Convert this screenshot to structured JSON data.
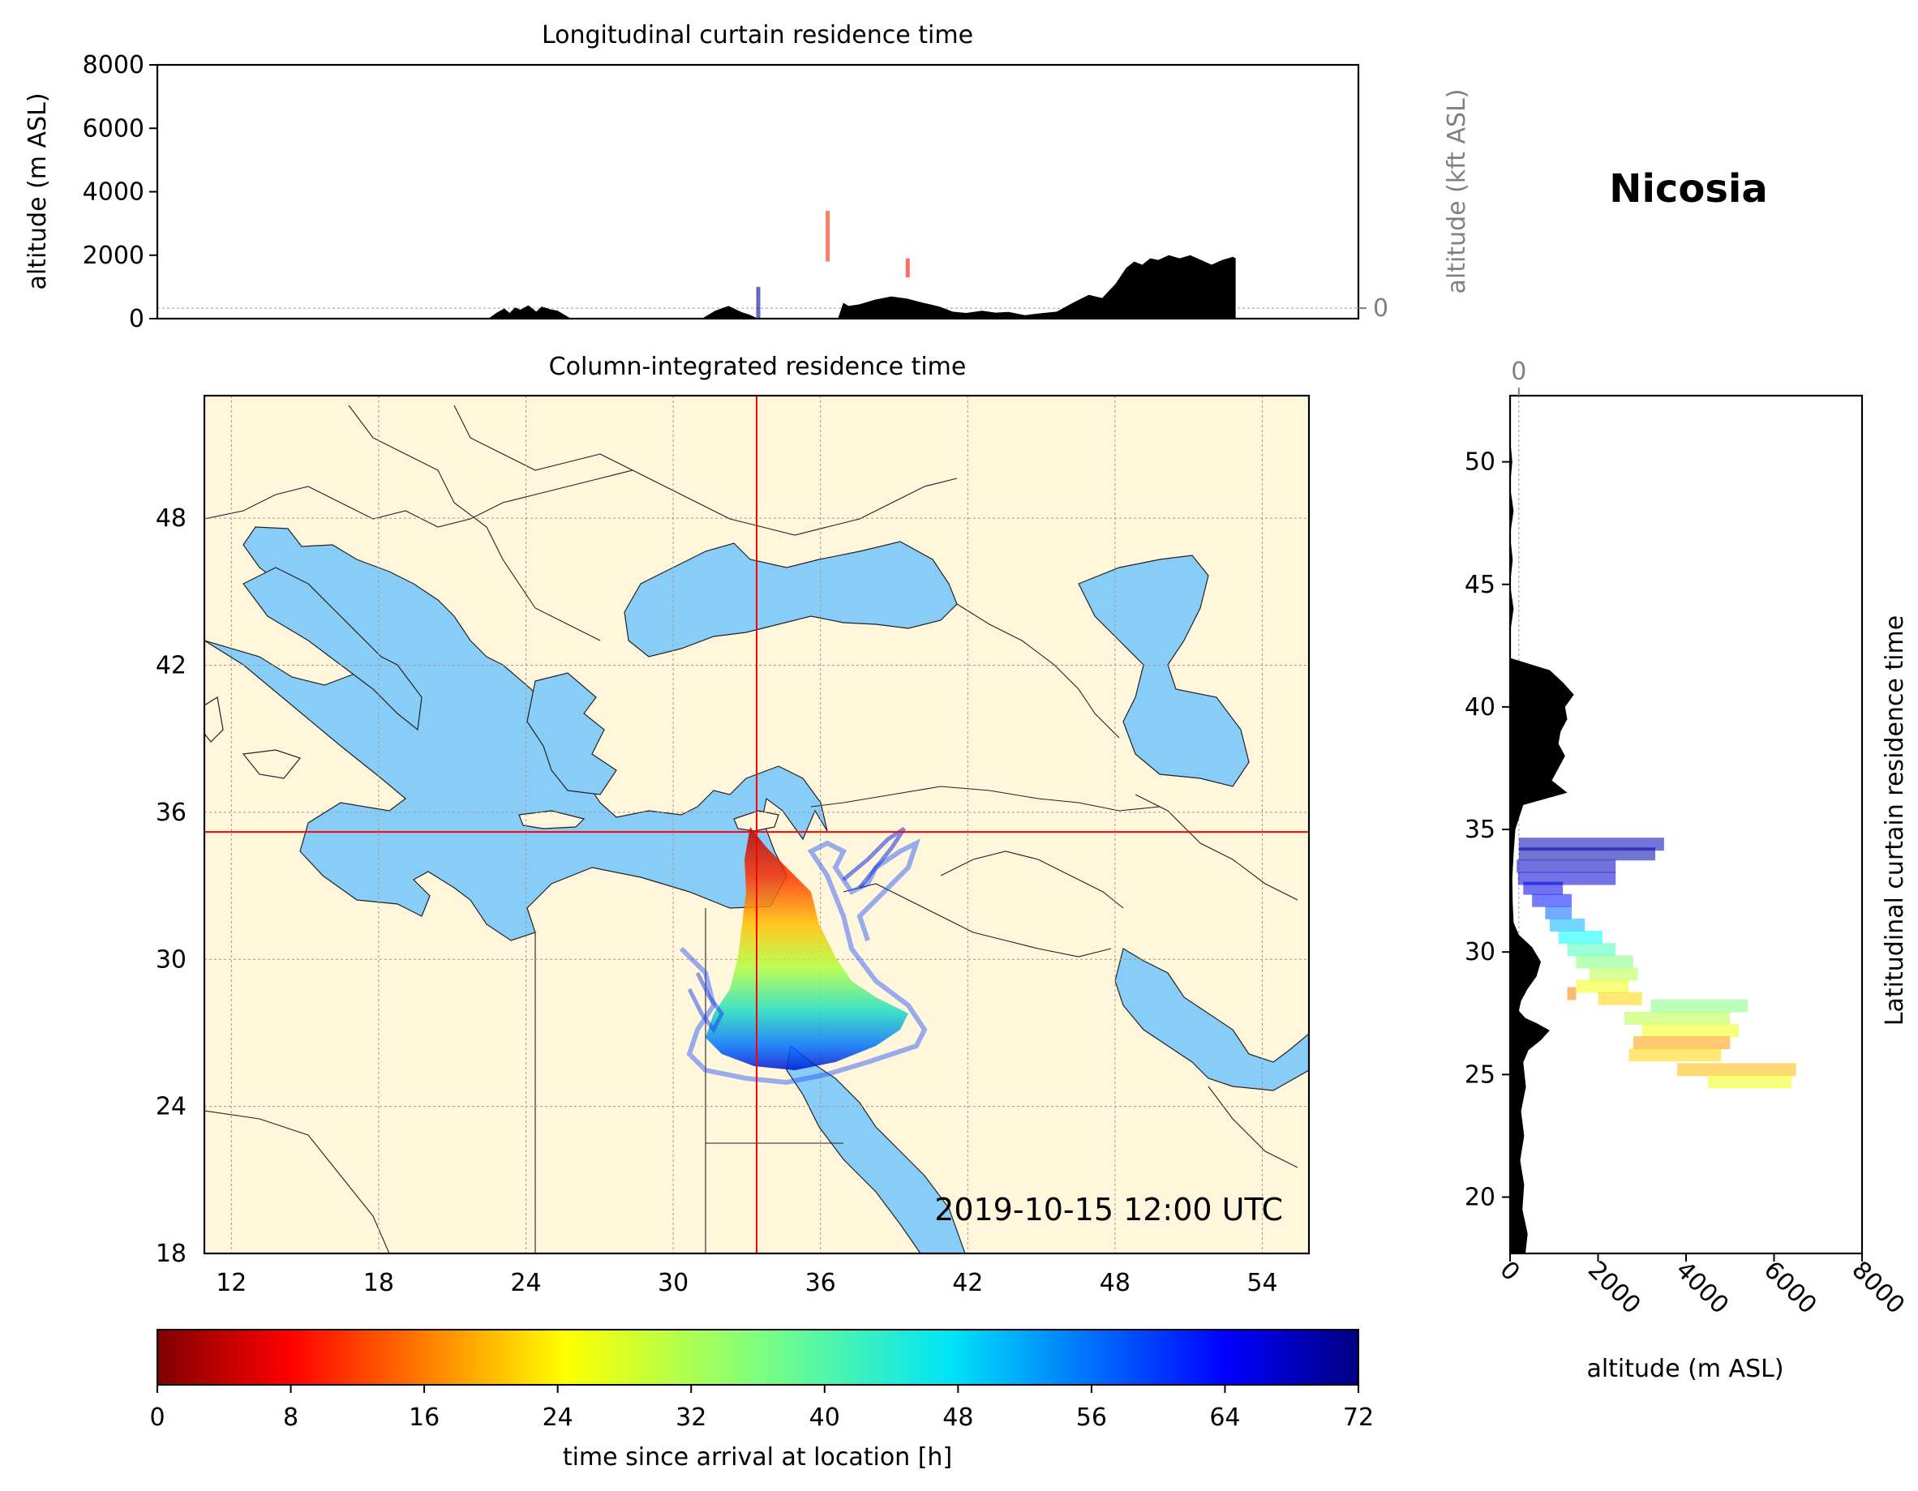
{
  "location": "Nicosia",
  "timestamp": "2019-10-15 12:00 UTC",
  "colors": {
    "land": "#fff6dc",
    "sea": "#87cdf8",
    "border": "#222222",
    "crosshair": "#ff0000",
    "topography": "#000000",
    "secondary_axis": "#808080",
    "grid": "#9a9a9a"
  },
  "colormap": "jet",
  "chart_data": [
    {
      "id": "longitudinal-curtain",
      "type": "area",
      "title": "Longitudinal curtain residence time",
      "ylabel": "altitude (m ASL)",
      "ylim": [
        0,
        8000
      ],
      "yticks": [
        "0",
        "2000",
        "4000",
        "6000",
        "8000"
      ],
      "secondary_ylabel": "altitude (kft ASL)",
      "secondary_yticks": [
        "0",
        "50",
        "100"
      ],
      "grid": true,
      "topography": {
        "x": [
          23.3,
          23.6,
          23.9,
          24.1,
          24.3,
          24.5,
          24.8,
          25.1,
          25.3,
          25.6,
          25.9,
          26.2,
          26.4,
          31.3,
          31.8,
          32.3,
          32.8,
          33.1,
          33.4,
          36.4,
          36.6,
          36.8,
          37.2,
          37.8,
          38.4,
          39.0,
          39.6,
          40.2,
          40.7,
          41.2,
          41.8,
          42.3,
          42.8,
          43.4,
          44.0,
          44.6,
          45.2,
          45.8,
          46.3,
          46.8,
          47.2,
          47.5,
          47.8,
          48.1,
          48.4,
          48.8,
          49.2,
          49.6,
          50.0,
          50.4,
          50.8,
          51.2,
          51.3
        ],
        "y": [
          0,
          180,
          320,
          180,
          350,
          280,
          420,
          220,
          380,
          300,
          250,
          100,
          0,
          0,
          250,
          400,
          200,
          120,
          0,
          0,
          500,
          400,
          450,
          600,
          700,
          630,
          500,
          380,
          220,
          180,
          250,
          190,
          210,
          110,
          170,
          220,
          500,
          750,
          650,
          1100,
          1600,
          1800,
          1700,
          1900,
          1850,
          2000,
          1900,
          2000,
          1850,
          1700,
          1850,
          1950,
          1900
        ]
      },
      "residence": [
        {
          "x": 33.4,
          "y0": 0,
          "y1": 1000,
          "t": 2
        },
        {
          "x": 36.0,
          "y0": 1800,
          "y1": 3400,
          "t": 60
        },
        {
          "x": 39.0,
          "y0": 1300,
          "y1": 1900,
          "t": 62
        }
      ]
    },
    {
      "id": "column-integrated",
      "type": "heatmap",
      "title": "Column-integrated residence time",
      "xlim": [
        10.9,
        55.9
      ],
      "ylim": [
        18,
        53
      ],
      "xticks": [
        "12",
        "18",
        "24",
        "30",
        "36",
        "42",
        "48",
        "54"
      ],
      "yticks": [
        "18",
        "24",
        "30",
        "36",
        "42",
        "48"
      ],
      "crosshair": {
        "lon": 33.4,
        "lat": 35.2
      },
      "grid": true
    },
    {
      "id": "latitudinal-curtain",
      "type": "area",
      "title": "Latitudinal curtain residence time",
      "xlabel": "altitude (m ASL)",
      "xlim": [
        0,
        8000
      ],
      "xticks": [
        "0",
        "2000",
        "4000",
        "6000",
        "8000"
      ],
      "secondary_xticks": [
        "0",
        "50",
        "100"
      ],
      "ylim": [
        17.7,
        52.7
      ],
      "yticks": [
        "20",
        "25",
        "30",
        "35",
        "40",
        "45",
        "50"
      ],
      "grid": true,
      "topography": {
        "lat": [
          17.7,
          18.5,
          19.5,
          20.5,
          21.5,
          22.5,
          23.5,
          24.5,
          25.5,
          26.0,
          26.4,
          26.8,
          27.1,
          27.3,
          27.6,
          28.0,
          28.5,
          29.0,
          29.6,
          30.2,
          30.7,
          31.2,
          32.0,
          33.0,
          34.0,
          35.0,
          36.0,
          36.5,
          37.0,
          37.5,
          38.0,
          38.5,
          39.0,
          39.5,
          40.0,
          40.5,
          41.0,
          41.5,
          42.0,
          43.0,
          44.0,
          45.0,
          46.0,
          47.0,
          48.0,
          49.0,
          50.0,
          51.0,
          52.7
        ],
        "alt": [
          350,
          400,
          280,
          320,
          230,
          320,
          250,
          360,
          300,
          420,
          700,
          900,
          600,
          350,
          200,
          250,
          400,
          600,
          700,
          500,
          200,
          80,
          60,
          50,
          80,
          120,
          300,
          1300,
          950,
          1100,
          1250,
          1100,
          1150,
          1300,
          1250,
          1450,
          1200,
          900,
          0,
          0,
          80,
          0,
          60,
          0,
          80,
          0,
          50,
          0,
          0
        ]
      },
      "residence": [
        {
          "lat": 34.4,
          "a0": 200,
          "a1": 3500,
          "t": 4
        },
        {
          "lat": 34.0,
          "a0": 200,
          "a1": 3300,
          "t": 3
        },
        {
          "lat": 33.5,
          "a0": 150,
          "a1": 2400,
          "t": 5
        },
        {
          "lat": 33.0,
          "a0": 180,
          "a1": 2400,
          "t": 6
        },
        {
          "lat": 32.6,
          "a0": 300,
          "a1": 1200,
          "t": 7
        },
        {
          "lat": 32.1,
          "a0": 500,
          "a1": 1400,
          "t": 10
        },
        {
          "lat": 31.6,
          "a0": 800,
          "a1": 1400,
          "t": 16
        },
        {
          "lat": 31.1,
          "a0": 900,
          "a1": 1700,
          "t": 22
        },
        {
          "lat": 30.6,
          "a0": 1100,
          "a1": 2100,
          "t": 27
        },
        {
          "lat": 30.1,
          "a0": 1300,
          "a1": 2400,
          "t": 32
        },
        {
          "lat": 29.6,
          "a0": 1500,
          "a1": 2800,
          "t": 36
        },
        {
          "lat": 29.1,
          "a0": 1800,
          "a1": 2900,
          "t": 40
        },
        {
          "lat": 28.6,
          "a0": 1500,
          "a1": 2700,
          "t": 44
        },
        {
          "lat": 28.1,
          "a0": 2000,
          "a1": 3000,
          "t": 48
        },
        {
          "lat": 27.8,
          "a0": 3200,
          "a1": 5400,
          "t": 36
        },
        {
          "lat": 27.3,
          "a0": 2600,
          "a1": 5000,
          "t": 40
        },
        {
          "lat": 26.8,
          "a0": 3000,
          "a1": 5200,
          "t": 44
        },
        {
          "lat": 26.3,
          "a0": 2800,
          "a1": 5000,
          "t": 52
        },
        {
          "lat": 25.8,
          "a0": 2700,
          "a1": 4800,
          "t": 48
        },
        {
          "lat": 25.2,
          "a0": 3800,
          "a1": 6500,
          "t": 50
        },
        {
          "lat": 24.7,
          "a0": 4500,
          "a1": 6400,
          "t": 44
        },
        {
          "lat": 28.3,
          "a0": 1300,
          "a1": 1500,
          "t": 54
        }
      ]
    },
    {
      "id": "colorbar",
      "type": "heatmap",
      "label": "time since arrival at location [h]",
      "range": [
        0,
        72
      ],
      "ticks": [
        "0",
        "8",
        "16",
        "24",
        "32",
        "40",
        "48",
        "56",
        "64",
        "72"
      ]
    }
  ]
}
